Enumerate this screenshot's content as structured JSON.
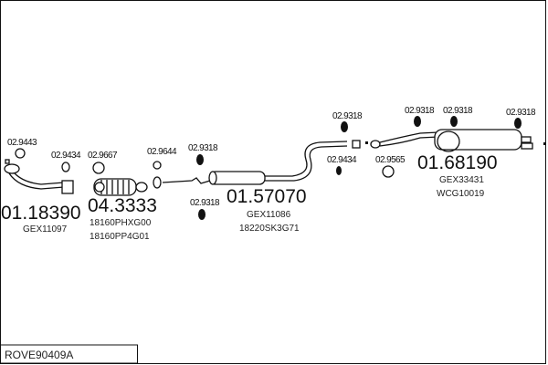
{
  "diagram_code": "ROVE90409A",
  "parts": [
    {
      "number": "01.18390",
      "refs": [
        "GEX11097"
      ]
    },
    {
      "number": "04.3333",
      "refs": [
        "18160PHXG00",
        "18160PP4G01"
      ]
    },
    {
      "number": "01.57070",
      "refs": [
        "GEX11086",
        "18220SK3G71"
      ]
    },
    {
      "number": "01.68190",
      "refs": [
        "GEX33431",
        "WCG10019"
      ]
    }
  ],
  "accessories": [
    "02.9443",
    "02.9434",
    "02.9667",
    "02.9644",
    "02.9318",
    "02.9318",
    "02.9318",
    "02.9434",
    "02.9565",
    "02.9318",
    "02.9318",
    "02.9318"
  ]
}
